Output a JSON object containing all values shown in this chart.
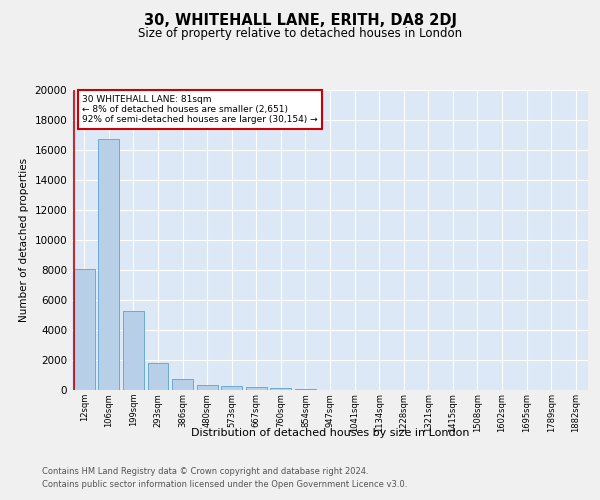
{
  "title": "30, WHITEHALL LANE, ERITH, DA8 2DJ",
  "subtitle": "Size of property relative to detached houses in London",
  "xlabel": "Distribution of detached houses by size in London",
  "ylabel": "Number of detached properties",
  "footnote1": "Contains HM Land Registry data © Crown copyright and database right 2024.",
  "footnote2": "Contains public sector information licensed under the Open Government Licence v3.0.",
  "annotation_line1": "30 WHITEHALL LANE: 81sqm",
  "annotation_line2": "← 8% of detached houses are smaller (2,651)",
  "annotation_line3": "92% of semi-detached houses are larger (30,154) →",
  "bar_color": "#b8cfe8",
  "bar_edge_color": "#6aaad4",
  "highlight_color": "#cc0000",
  "background_color": "#dce8f5",
  "fig_background": "#f0f0f0",
  "bins": [
    "12sqm",
    "106sqm",
    "199sqm",
    "293sqm",
    "386sqm",
    "480sqm",
    "573sqm",
    "667sqm",
    "760sqm",
    "854sqm",
    "947sqm",
    "1041sqm",
    "1134sqm",
    "1228sqm",
    "1321sqm",
    "1415sqm",
    "1508sqm",
    "1602sqm",
    "1695sqm",
    "1789sqm",
    "1882sqm"
  ],
  "values": [
    8100,
    16700,
    5300,
    1800,
    750,
    350,
    250,
    200,
    150,
    100,
    0,
    0,
    0,
    0,
    0,
    0,
    0,
    0,
    0,
    0,
    0
  ],
  "property_bin_index": 0,
  "ylim": [
    0,
    20000
  ],
  "yticks": [
    0,
    2000,
    4000,
    6000,
    8000,
    10000,
    12000,
    14000,
    16000,
    18000,
    20000
  ]
}
